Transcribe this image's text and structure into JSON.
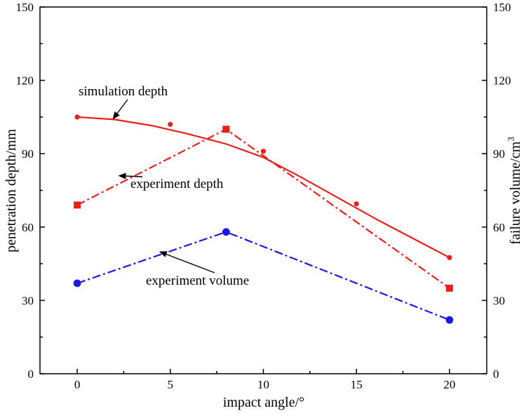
{
  "chart_data": {
    "type": "line",
    "title": "",
    "xlabel": "impact angle/°",
    "ylabel": "penetration depth/mm",
    "y2label": "failure volume/cm",
    "y2label_sup": "3",
    "xlim": [
      -2,
      22
    ],
    "ylim": [
      0,
      150
    ],
    "y2lim": [
      0,
      150
    ],
    "xticks": [
      0,
      5,
      10,
      15,
      20
    ],
    "yticks": [
      0,
      30,
      60,
      90,
      120,
      150
    ],
    "y2ticks": [
      0,
      30,
      60,
      90,
      120,
      150
    ],
    "grid": false,
    "legend": "none",
    "series": [
      {
        "name": "simulation depth",
        "axis": "left",
        "color": "#e8201c",
        "line_style": "solid",
        "marker": "small-circle",
        "x": [
          0,
          5,
          10,
          15,
          20
        ],
        "y": [
          105,
          102,
          91,
          69.5,
          47.5
        ],
        "curve": {
          "x": [
            0,
            2,
            4,
            6,
            8,
            10,
            12,
            14,
            16,
            18,
            20
          ],
          "y": [
            105,
            104,
            101.5,
            98,
            94,
            88.5,
            80.5,
            72,
            63.5,
            55.5,
            47.5
          ]
        }
      },
      {
        "name": "experiment depth",
        "axis": "left",
        "color": "#e8201c",
        "line_style": "dash-dot",
        "marker": "square",
        "x": [
          0,
          8,
          20
        ],
        "y": [
          69,
          100,
          35
        ]
      },
      {
        "name": "experiment volume",
        "axis": "right",
        "color": "#1a1ae0",
        "line_style": "dash-dot",
        "marker": "circle",
        "x": [
          0,
          8,
          20
        ],
        "y": [
          37,
          58,
          22
        ]
      }
    ],
    "annotations": [
      {
        "text": "simulation depth",
        "series": 0,
        "arrow_to": [
          1.9,
          104
        ]
      },
      {
        "text": "experiment depth",
        "series": 1,
        "arrow_to": [
          2.2,
          81
        ]
      },
      {
        "text": "experiment volume",
        "series": 2,
        "arrow_to": [
          4.4,
          50
        ]
      }
    ]
  }
}
